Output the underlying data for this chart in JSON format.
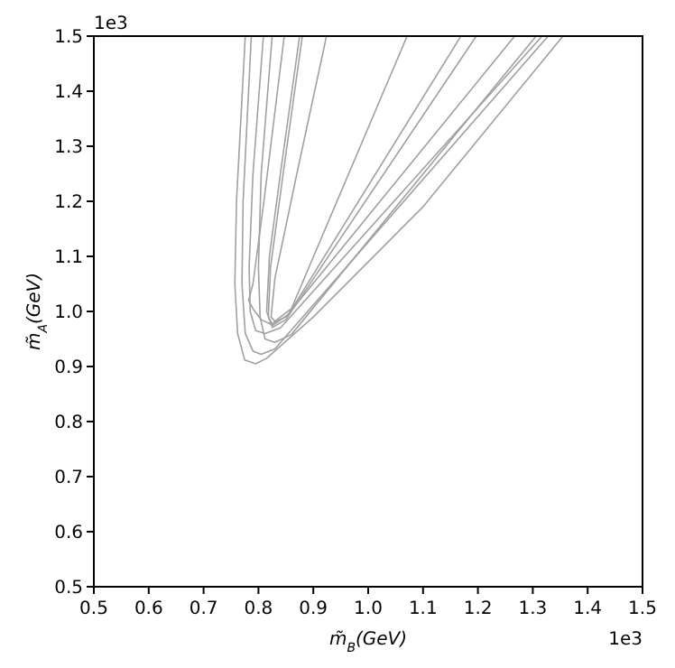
{
  "chart_data": {
    "type": "line",
    "xlabel": "m̃$_{B}$(GeV)",
    "ylabel": "m̃$_{A}$(GeV)",
    "annotations": [
      "1e3",
      "1e3"
    ],
    "xlim": [
      0.5,
      1.5
    ],
    "ylim": [
      0.5,
      1.5
    ],
    "xticks": [
      0.5,
      0.6,
      0.7,
      0.8,
      0.9,
      {
        "value": 1,
        "label": "1.0"
      },
      1.1,
      1.2,
      1.3,
      1.4,
      1.5
    ],
    "yticks": [
      0.5,
      0.6,
      0.7,
      0.8,
      0.9,
      {
        "value": 1,
        "label": "1.0"
      },
      1.1,
      1.2,
      1.3,
      1.4,
      1.5
    ],
    "grid": false,
    "marker": "none",
    "line_style": "solid",
    "series": [
      {
        "color": "#a0a0a0",
        "x": [
          0.776,
          0.76,
          0.757,
          0.762,
          0.775,
          0.795,
          0.815,
          0.9,
          1.1,
          1.355
        ],
        "values": [
          1.5,
          1.2,
          1.05,
          0.96,
          0.912,
          0.905,
          0.915,
          0.99,
          1.19,
          1.5
        ]
      },
      {
        "color": "#a0a0a0",
        "x": [
          0.787,
          0.772,
          0.77,
          0.776,
          0.79,
          0.805,
          0.83,
          1.328
        ],
        "values": [
          1.5,
          1.2,
          1.05,
          0.96,
          0.928,
          0.922,
          0.932,
          1.5
        ]
      },
      {
        "color": "#a0a0a0",
        "x": [
          0.809,
          0.79,
          0.783,
          0.785,
          0.795,
          0.812,
          0.84,
          1.317
        ],
        "values": [
          1.5,
          1.25,
          1.08,
          1.0,
          0.965,
          0.96,
          0.97,
          1.5
        ]
      },
      {
        "color": "#a0a0a0",
        "x": [
          0.825,
          0.805,
          0.8,
          0.803,
          0.812,
          0.83,
          0.86,
          1.306
        ],
        "values": [
          1.5,
          1.25,
          1.08,
          0.99,
          0.95,
          0.944,
          0.958,
          1.5
        ]
      },
      {
        "color": "#a0a0a0",
        "x": [
          0.847,
          0.81,
          0.79,
          0.782,
          0.79,
          0.805,
          0.822,
          0.85,
          1.267
        ],
        "values": [
          1.5,
          1.2,
          1.05,
          1.02,
          1.005,
          0.985,
          0.977,
          0.99,
          1.5
        ]
      },
      {
        "color": "#a0a0a0",
        "x": [
          0.875,
          0.84,
          0.82,
          0.815,
          0.825,
          0.85,
          1.197
        ],
        "values": [
          1.5,
          1.25,
          1.1,
          1.0,
          0.971,
          0.985,
          1.5
        ]
      },
      {
        "color": "#a0a0a0",
        "x": [
          0.88,
          0.845,
          0.822,
          0.818,
          0.826,
          0.855,
          1.169
        ],
        "values": [
          1.5,
          1.25,
          1.08,
          0.99,
          0.975,
          0.995,
          1.5
        ]
      },
      {
        "color": "#a0a0a0",
        "x": [
          0.924,
          0.87,
          0.83,
          0.823,
          0.83,
          0.86,
          1.071
        ],
        "values": [
          1.5,
          1.25,
          1.06,
          0.99,
          0.982,
          1.005,
          1.5
        ]
      }
    ]
  }
}
